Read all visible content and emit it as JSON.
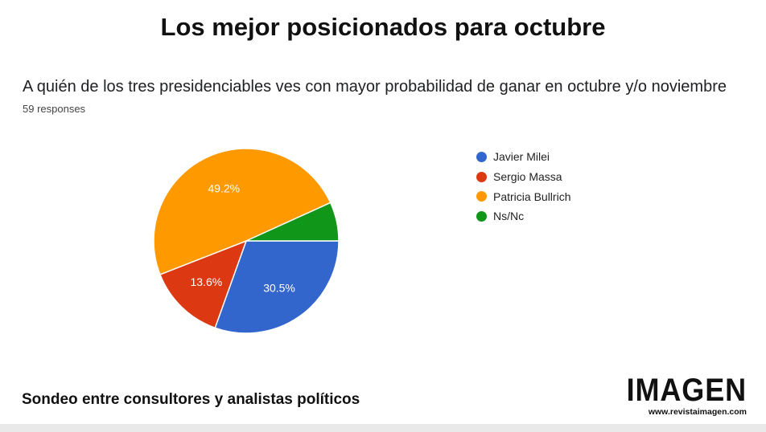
{
  "header": {
    "title": "Los mejor posicionados para octubre"
  },
  "survey": {
    "question": "A quién de los tres presidenciables ves con mayor probabilidad de ganar en octubre y/o noviembre",
    "responses": "59 responses"
  },
  "chart_data": {
    "type": "pie",
    "title": "A quién de los tres presidenciables ves con mayor probabilidad de ganar en octubre y/o noviembre",
    "legend_position": "right",
    "series": [
      {
        "name": "Javier Milei",
        "value": 30.5,
        "label": "30.5%",
        "color": "#3366cc"
      },
      {
        "name": "Sergio Massa",
        "value": 13.6,
        "label": "13.6%",
        "color": "#dc3912"
      },
      {
        "name": "Patricia Bullrich",
        "value": 49.2,
        "label": "49.2%",
        "color": "#ff9900"
      },
      {
        "name": "Ns/Nc",
        "value": 6.8,
        "label": "",
        "color": "#109618"
      }
    ]
  },
  "footer": {
    "text": "Sondeo entre consultores y analistas políticos",
    "logo_text": "IMAGEN",
    "logo_url": "www.revistaimagen.com"
  }
}
